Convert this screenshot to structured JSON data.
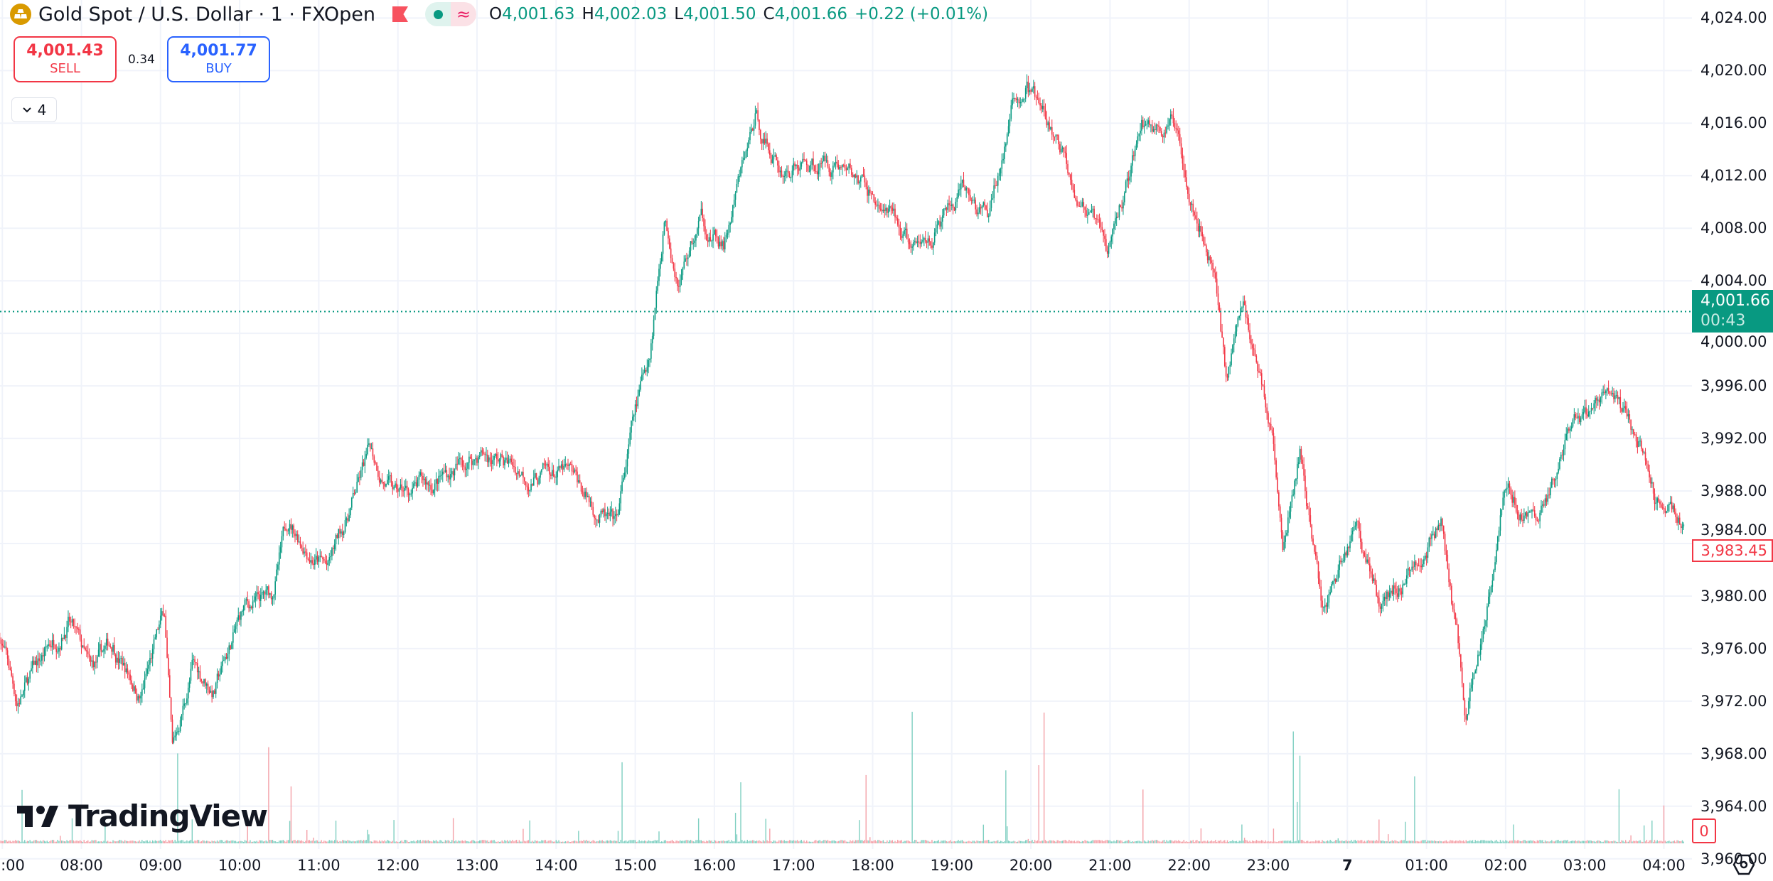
{
  "header": {
    "symbol_title": "Gold Spot / U.S. Dollar · 1 · FXOpen",
    "ohlc": [
      {
        "key": "O",
        "value": "4,001.63"
      },
      {
        "key": "H",
        "value": "4,002.03"
      },
      {
        "key": "L",
        "value": "4,001.50"
      },
      {
        "key": "C",
        "value": "4,001.66"
      },
      {
        "key": "",
        "value": "+0.22 (+0.01%)"
      }
    ],
    "market_status_icon": "market-open-dot",
    "delay_icon": "approx-wave",
    "flag_icon": "flag"
  },
  "trade": {
    "sell_price": "4,001.43",
    "sell_label": "SELL",
    "spread": "0.34",
    "buy_price": "4,001.77",
    "buy_label": "BUY"
  },
  "indicators_toggle": {
    "count": "4"
  },
  "branding": {
    "logo_text": "TradingView"
  },
  "price_axis": {
    "ticks": [
      "4,024.00",
      "4,020.00",
      "4,016.00",
      "4,012.00",
      "4,008.00",
      "4,004.00",
      "4,000.00",
      "3,996.00",
      "3,992.00",
      "3,988.00",
      "3,984.00",
      "3,980.00",
      "3,976.00",
      "3,972.00",
      "3,968.00",
      "3,964.00",
      "3,960.00"
    ],
    "current_price": "4,001.66",
    "countdown": "00:43",
    "line_label": "3,983.45",
    "volume_label": "0"
  },
  "time_axis": {
    "ticks": [
      ":00",
      "08:00",
      "09:00",
      "10:00",
      "11:00",
      "12:00",
      "13:00",
      "14:00",
      "15:00",
      "16:00",
      "17:00",
      "18:00",
      "19:00",
      "20:00",
      "21:00",
      "22:00",
      "23:00",
      "7",
      "01:00",
      "02:00",
      "03:00",
      "04:00"
    ]
  },
  "colors": {
    "up": "#089981",
    "down": "#f23645",
    "grid": "#f0f3fa",
    "buy": "#2962ff"
  },
  "chart_data": {
    "type": "candlestick",
    "interval": "1 minute",
    "ylim": [
      3958,
      4026
    ],
    "grid": true,
    "current_price": 4001.66,
    "price_path": [
      [
        "6 06:58",
        3977.2
      ],
      [
        "6 07:11",
        3972.0
      ],
      [
        "6 07:50",
        3978.5
      ],
      [
        "6 08:07",
        3973.8
      ],
      [
        "6 08:24",
        3976.3
      ],
      [
        "6 08:45",
        3972.5
      ],
      [
        "6 09:03",
        3978.5
      ],
      [
        "6 09:09",
        3967.7
      ],
      [
        "6 09:24",
        3974.6
      ],
      [
        "6 09:41",
        3972.9
      ],
      [
        "6 10:03",
        3978.9
      ],
      [
        "6 10:24",
        3979.8
      ],
      [
        "6 10:37",
        3985.8
      ],
      [
        "6 11:07",
        3982.0
      ],
      [
        "6 11:39",
        3991.0
      ],
      [
        "6 11:58",
        3987.5
      ],
      [
        "6 12:24",
        3988.4
      ],
      [
        "6 13:03",
        3991.0
      ],
      [
        "6 13:41",
        3989.2
      ],
      [
        "6 14:07",
        3989.2
      ],
      [
        "6 14:45",
        3984.9
      ],
      [
        "6 14:58",
        3992.7
      ],
      [
        "6 15:11",
        3998.7
      ],
      [
        "6 15:22",
        4009.0
      ],
      [
        "6 15:33",
        4004.7
      ],
      [
        "6 15:50",
        4008.6
      ],
      [
        "6 16:07",
        4006.4
      ],
      [
        "6 16:31",
        4016.3
      ],
      [
        "6 16:50",
        4012.5
      ],
      [
        "6 17:33",
        4013.3
      ],
      [
        "6 18:07",
        4009.5
      ],
      [
        "6 18:33",
        4006.0
      ],
      [
        "6 19:07",
        4010.3
      ],
      [
        "6 19:28",
        4008.6
      ],
      [
        "6 19:45",
        4016.8
      ],
      [
        "6 19:57",
        4018.9
      ],
      [
        "6 20:11",
        4015.9
      ],
      [
        "6 20:41",
        4009.9
      ],
      [
        "6 20:58",
        4005.6
      ],
      [
        "6 21:24",
        4015.9
      ],
      [
        "6 21:50",
        4015.5
      ],
      [
        "6 22:20",
        4004.7
      ],
      [
        "6 22:28",
        3997.0
      ],
      [
        "6 22:41",
        4002.2
      ],
      [
        "6 23:03",
        3992.7
      ],
      [
        "6 23:11",
        3983.2
      ],
      [
        "6 23:24",
        3991.0
      ],
      [
        "6 23:41",
        3978.9
      ],
      [
        "7 00:07",
        3985.8
      ],
      [
        "7 00:24",
        3979.8
      ],
      [
        "7 00:45",
        3981.5
      ],
      [
        "7 01:11",
        3985.8
      ],
      [
        "7 01:24",
        3975.5
      ],
      [
        "7 01:30",
        3970.8
      ],
      [
        "7 01:41",
        3976.3
      ],
      [
        "7 01:58",
        3988.4
      ],
      [
        "7 02:24",
        3985.8
      ],
      [
        "7 02:45",
        3991.0
      ],
      [
        "7 03:15",
        3995.7
      ],
      [
        "7 03:41",
        3991.8
      ],
      [
        "7 03:54",
        3987.5
      ],
      [
        "7 04:15",
        3986.2
      ]
    ]
  }
}
